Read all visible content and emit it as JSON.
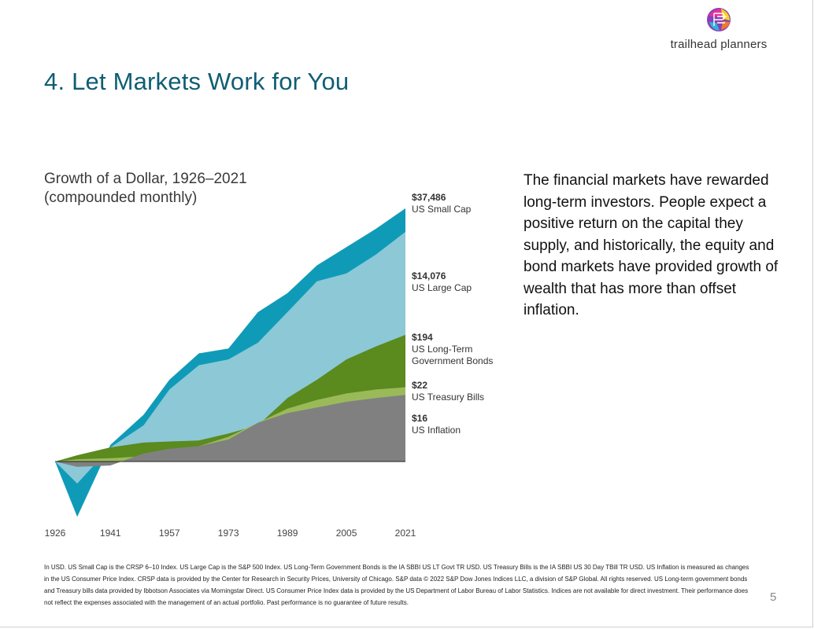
{
  "brand": {
    "name": "trailhead planners",
    "colors": [
      "#8b3fb8",
      "#e8309a",
      "#f5d21f",
      "#2bb6d8",
      "#ee7a2d"
    ]
  },
  "slide": {
    "title": "4. Let Markets Work for You",
    "page_number": "5"
  },
  "body_text": "The financial markets have rewarded long-term investors. People expect a positive return on the capital they supply, and historically, the equity and bond markets have provided growth of wealth that has more than offset inflation.",
  "footnote": "In USD. US Small Cap is the CRSP 6–10 Index. US Large Cap is the S&P 500 Index. US Long-Term Government Bonds is the IA SBBI US LT Govt TR USD. US Treasury Bills is the IA SBBI US 30 Day TBill TR USD. US Inflation is measured as changes in the US Consumer Price Index. CRSP data is provided by the Center for Research in Security Prices, University of Chicago. S&P data © 2022 S&P Dow Jones Indices LLC, a division of S&P Global. All rights reserved. US Long-term government bonds and Treasury bills data provided by Ibbotson Associates via Morningstar Direct. US Consumer Price Index data is provided by the US Department of Labor Bureau of Labor Statistics. Indices are not available for direct investment. Their performance does not reflect the expenses associated with the management of an actual portfolio. Past performance is no guarantee of future results.",
  "chart_data": {
    "type": "area",
    "title": "Growth of a Dollar, 1926–2021",
    "subtitle": "(compounded monthly)",
    "y_scale": "log",
    "y_baseline": 1,
    "x_ticks": [
      "1926",
      "1941",
      "1957",
      "1973",
      "1989",
      "2005",
      "2021"
    ],
    "x": [
      1926,
      1932,
      1941,
      1950,
      1957,
      1965,
      1973,
      1981,
      1989,
      1997,
      2005,
      2013,
      2021
    ],
    "series": [
      {
        "name": "US Small Cap",
        "end_value": "$37,486",
        "color": "#0f9bb8",
        "values": [
          1,
          0.1,
          2,
          7,
          30,
          90,
          110,
          500,
          1100,
          3500,
          7500,
          16000,
          37486
        ]
      },
      {
        "name": "US Large Cap",
        "end_value": "$14,076",
        "color": "#8cc8d6",
        "values": [
          1,
          0.4,
          1.8,
          4.5,
          20,
          55,
          70,
          140,
          500,
          1800,
          2500,
          5500,
          14076
        ]
      },
      {
        "name": "US Long-Term Government Bonds",
        "end_value": "$194",
        "color": "#5b8a1e",
        "values": [
          1,
          1.3,
          1.8,
          2.2,
          2.3,
          2.4,
          3.2,
          4.5,
          14,
          30,
          70,
          120,
          194
        ]
      },
      {
        "name": "US Treasury Bills",
        "end_value": "$22",
        "color": "#9aba5a",
        "values": [
          1,
          1.1,
          1.15,
          1.25,
          1.45,
          1.9,
          2.8,
          5,
          9,
          13,
          17,
          20,
          22
        ]
      },
      {
        "name": "US Inflation",
        "end_value": "$16",
        "color": "#808080",
        "values": [
          1,
          0.8,
          0.85,
          1.4,
          1.7,
          1.9,
          2.5,
          5,
          7.5,
          9.5,
          12,
          14,
          16
        ]
      }
    ]
  }
}
